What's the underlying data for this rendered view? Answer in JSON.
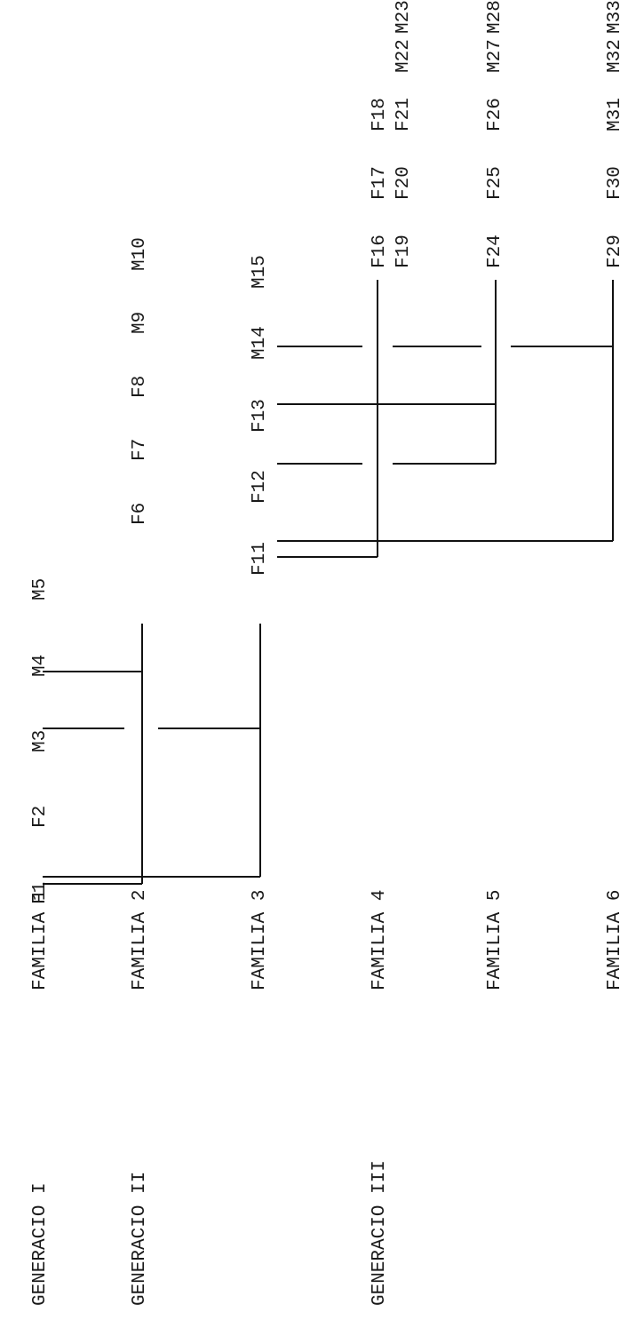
{
  "generations": [
    {
      "key": "g1",
      "label": "GENERACIO I"
    },
    {
      "key": "g2",
      "label": "GENERACIO II"
    },
    {
      "key": "g3",
      "label": "GENERACIO III"
    }
  ],
  "families": [
    {
      "key": "f1",
      "label": "FAMILIA 1"
    },
    {
      "key": "f2",
      "label": "FAMILIA 2"
    },
    {
      "key": "f3",
      "label": "FAMILIA 3"
    },
    {
      "key": "f4",
      "label": "FAMILIA 4"
    },
    {
      "key": "f5",
      "label": "FAMILIA 5"
    },
    {
      "key": "f6",
      "label": "FAMILIA 6"
    }
  ],
  "individuals": {
    "gen1": [
      "F1",
      "F2",
      "M3",
      "M4",
      "M5"
    ],
    "gen2": [
      "F6",
      "F7",
      "F8",
      "M9",
      "M10"
    ],
    "gen3": [
      "F11",
      "F12",
      "F13",
      "M14",
      "M15"
    ],
    "fam4": [
      "F16",
      "F17",
      "F18"
    ],
    "fam4b": [
      "F19",
      "F20",
      "F21",
      "M22",
      "M23"
    ],
    "fam5": [
      "F24",
      "F25",
      "F26",
      "M27",
      "M28"
    ],
    "fam6": [
      "F29",
      "F30",
      "M31",
      "M32",
      "M33"
    ]
  }
}
